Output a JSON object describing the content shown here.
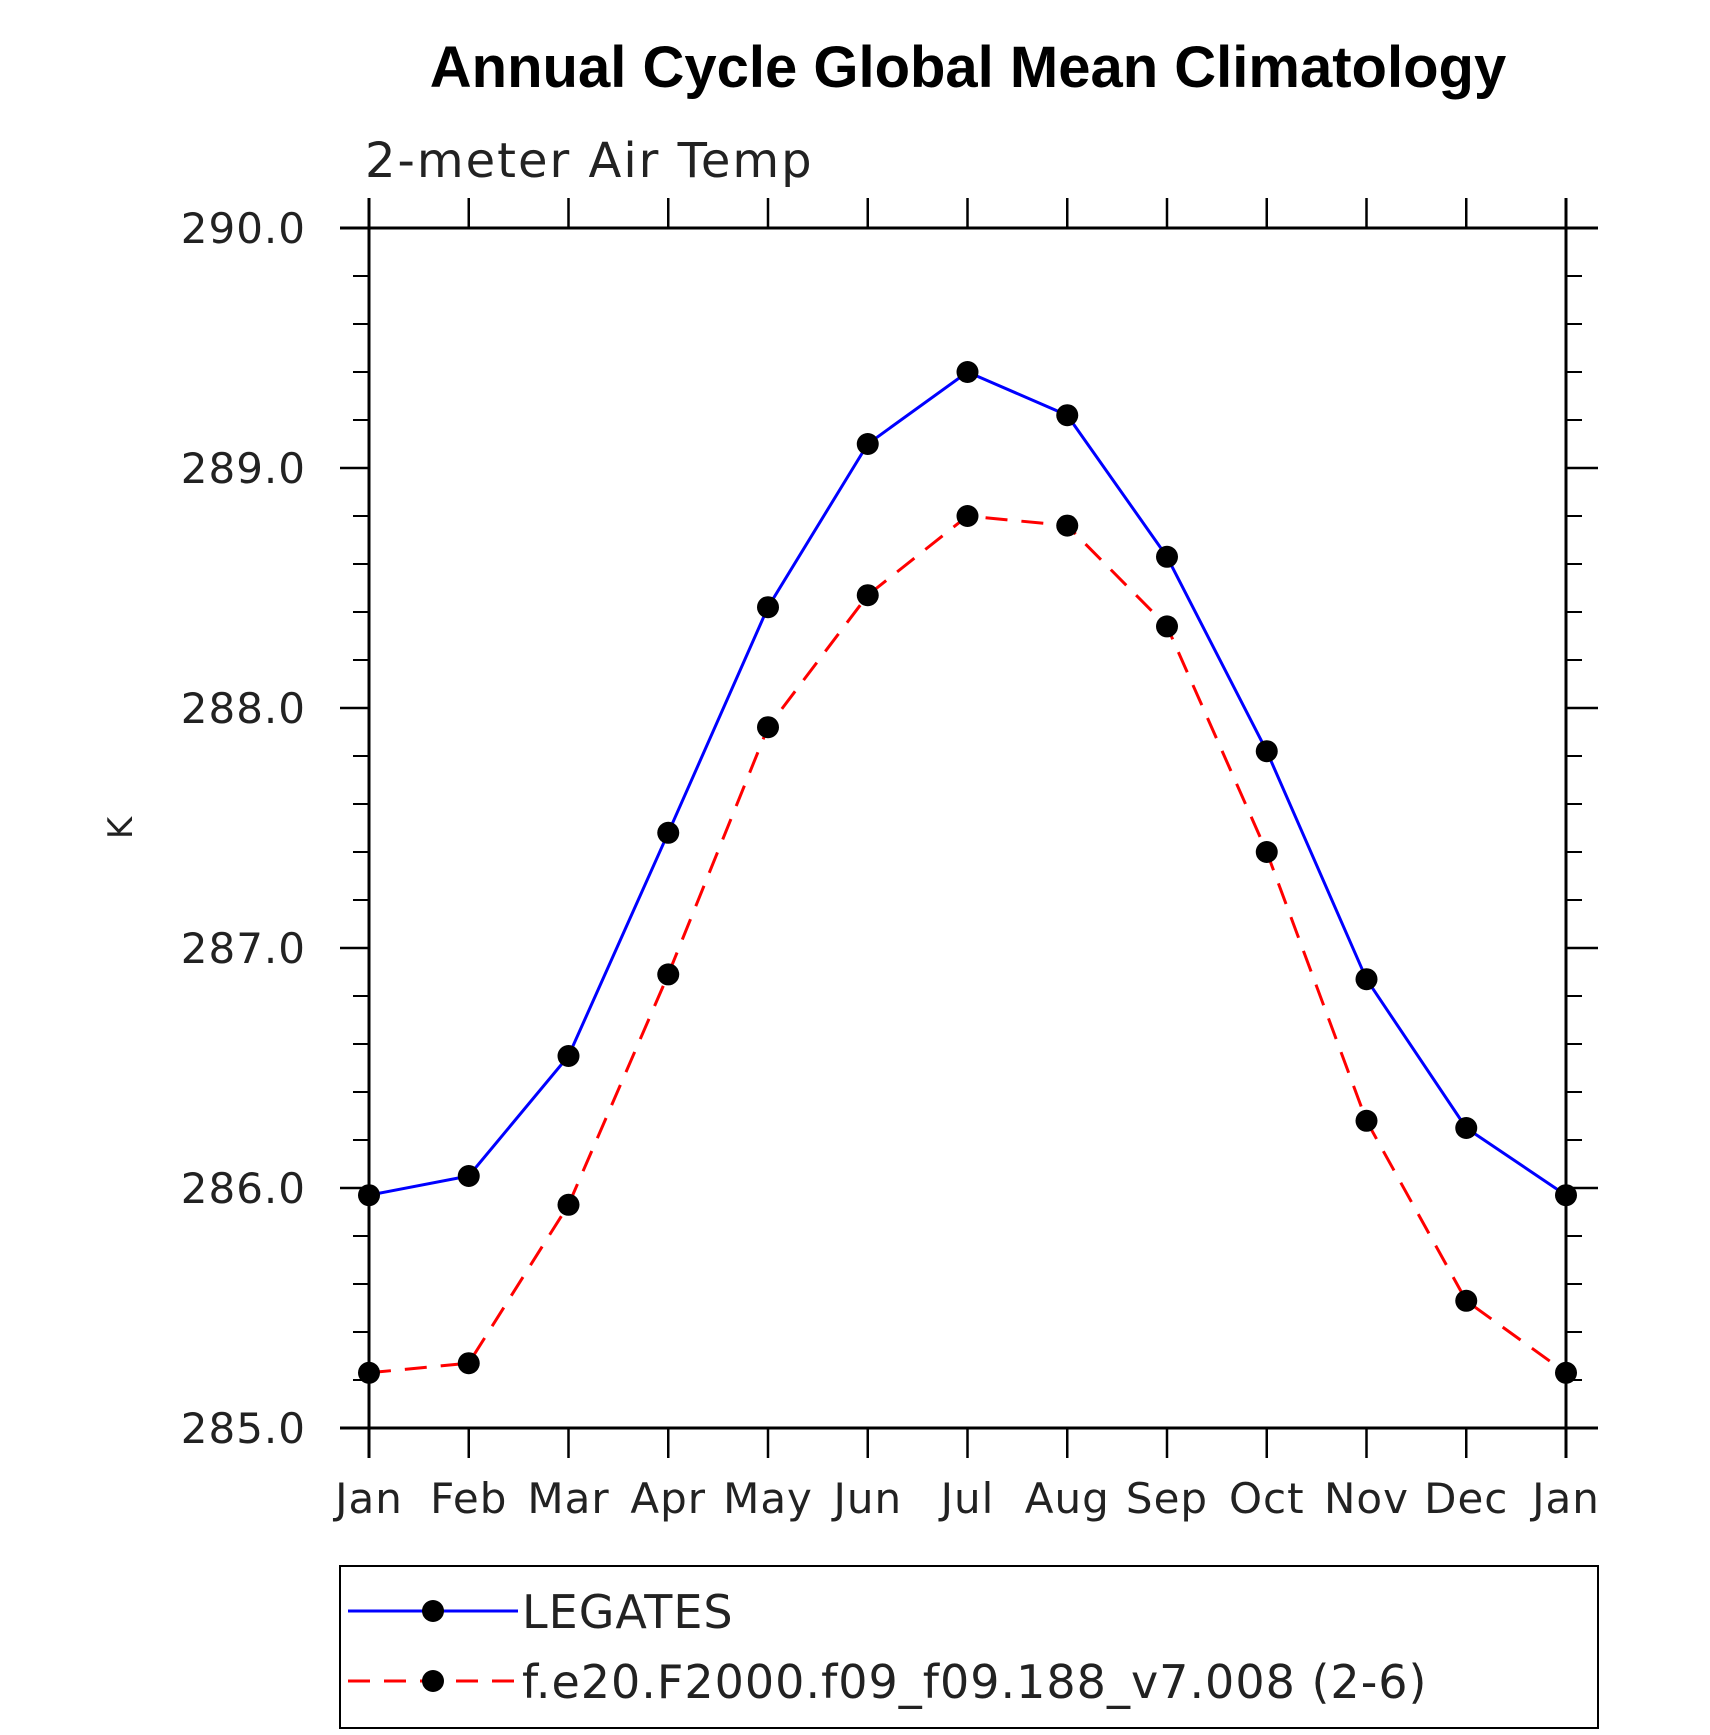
{
  "chart_data": {
    "type": "line",
    "title": "Annual Cycle Global Mean Climatology",
    "subtitle": "2-meter Air Temp",
    "ylabel": "K",
    "xlabel": "",
    "ylim": [
      285.0,
      290.0
    ],
    "yticks": [
      "285.0",
      "286.0",
      "287.0",
      "288.0",
      "289.0",
      "290.0"
    ],
    "categories": [
      "Jan",
      "Feb",
      "Mar",
      "Apr",
      "May",
      "Jun",
      "Jul",
      "Aug",
      "Sep",
      "Oct",
      "Nov",
      "Dec",
      "Jan"
    ],
    "series": [
      {
        "name": "LEGATES",
        "color": "#0000ff",
        "dash": "solid",
        "marker": "filled-circle",
        "values": [
          285.97,
          286.05,
          286.55,
          287.48,
          288.42,
          289.1,
          289.4,
          289.22,
          288.63,
          287.82,
          286.87,
          286.25,
          285.97
        ]
      },
      {
        "name": "f.e20.F2000.f09_f09.188_v7.008 (2-6)",
        "color": "#ff0000",
        "dash": "dashed",
        "marker": "filled-circle",
        "values": [
          285.23,
          285.27,
          285.93,
          286.89,
          287.92,
          288.47,
          288.8,
          288.76,
          288.34,
          287.4,
          286.28,
          285.53,
          285.23
        ]
      }
    ],
    "grid": false,
    "legend_position": "bottom"
  }
}
